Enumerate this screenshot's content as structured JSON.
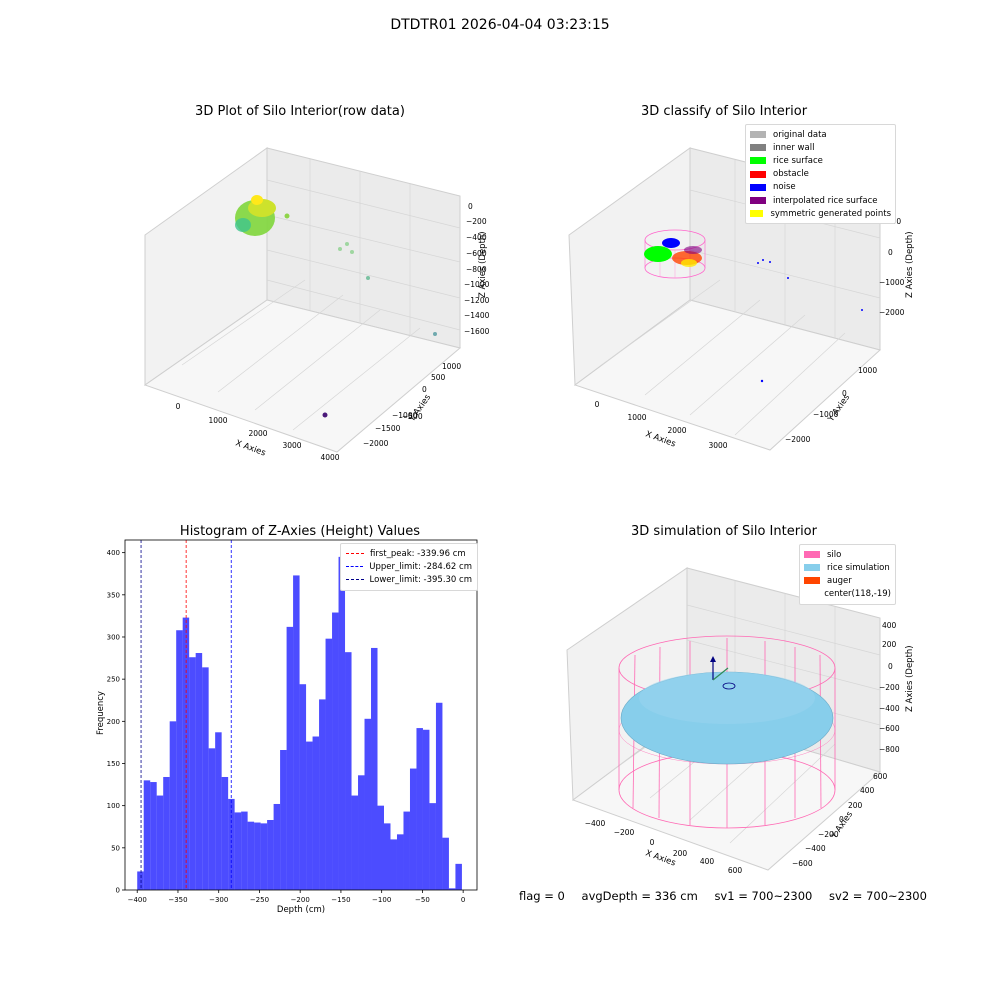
{
  "header": {
    "title": "DTDTR01 2026-04-04 03:23:15"
  },
  "footer": {
    "flag": "flag = 0",
    "avg_depth": "avgDepth = 336 cm",
    "sv1": "sv1 = 700~2300",
    "sv2": "sv2 = 700~2300"
  },
  "chart_data": [
    {
      "type": "scatter",
      "title": "3D Plot of Silo Interior(row data)",
      "xlabel": "X Axies",
      "ylabel": "Y Axies",
      "zlabel": "Z Axies (Depth)",
      "x_ticks": [
        "0",
        "1000",
        "2000",
        "3000",
        "4000"
      ],
      "y_ticks": [
        "1000",
        "500",
        "0",
        "−500",
        "−1000",
        "−1500",
        "−2000"
      ],
      "z_ticks": [
        "0",
        "−200",
        "−400",
        "−600",
        "−800",
        "−1000",
        "−1200",
        "−1400",
        "−1600"
      ],
      "grid": true
    },
    {
      "type": "scatter",
      "title": "3D classify of Silo Interior",
      "xlabel": "X Axies",
      "ylabel": "Y Axies",
      "zlabel": "Z Axies (Depth)",
      "x_ticks": [
        "0",
        "1000",
        "2000",
        "3000"
      ],
      "y_ticks": [
        "1000",
        "0",
        "−1000",
        "−2000"
      ],
      "z_ticks": [
        "1000",
        "0",
        "−1000",
        "−2000"
      ],
      "legend": {
        "placement": "top-right",
        "items": [
          {
            "label": "original data",
            "color": "#b3b3b3"
          },
          {
            "label": "inner wall",
            "color": "#808080"
          },
          {
            "label": "rice surface",
            "color": "#00ff00"
          },
          {
            "label": "obstacle",
            "color": "#ff0000"
          },
          {
            "label": "noise",
            "color": "#0000ff"
          },
          {
            "label": "interpolated rice surface",
            "color": "#800080"
          },
          {
            "label": "symmetric generated points",
            "color": "#ffff00"
          }
        ]
      },
      "grid": true
    },
    {
      "type": "bar",
      "title": "Histogram of Z-Axies (Height) Values",
      "xlabel": "Depth (cm)",
      "ylabel": "Frequency",
      "bar_color": "#0000ff",
      "bin_start": -400,
      "bin_width": 7.97,
      "values": [
        22,
        130,
        128,
        112,
        134,
        200,
        308,
        323,
        276,
        281,
        264,
        168,
        187,
        134,
        108,
        92,
        93,
        81,
        80,
        79,
        83,
        102,
        166,
        312,
        373,
        244,
        176,
        182,
        226,
        298,
        329,
        395,
        282,
        112,
        136,
        203,
        287,
        100,
        79,
        60,
        66,
        93,
        144,
        192,
        190,
        103,
        222,
        62,
        2,
        31
      ],
      "xlim": [
        -415,
        17
      ],
      "ylim": [
        0,
        415
      ],
      "x_ticks": [
        -400,
        -350,
        -300,
        -250,
        -200,
        -150,
        -100,
        -50,
        0
      ],
      "x_tick_labels": [
        "−400",
        "−350",
        "−300",
        "−250",
        "−200",
        "−150",
        "−100",
        "−50",
        "0"
      ],
      "y_ticks": [
        0,
        50,
        100,
        150,
        200,
        250,
        300,
        350,
        400
      ],
      "vlines": [
        {
          "label": "first_peak: -339.96 cm",
          "x": -339.96,
          "color": "#ff0000"
        },
        {
          "label": "Upper_limit: -284.62 cm",
          "x": -284.62,
          "color": "#0000ff"
        },
        {
          "label": "Lower_limit: -395.30 cm",
          "x": -395.3,
          "color": "#00008b"
        }
      ],
      "legend": {
        "placement": "top-right"
      }
    },
    {
      "type": "surface",
      "title": "3D simulation of Silo Interior",
      "xlabel": "X Axies",
      "ylabel": "Y Axies",
      "zlabel": "Z Axies (Depth)",
      "x_ticks": [
        "−400",
        "−200",
        "0",
        "200",
        "400",
        "600"
      ],
      "y_ticks": [
        "600",
        "400",
        "200",
        "0",
        "−200",
        "−400",
        "−600"
      ],
      "z_ticks": [
        "400",
        "200",
        "0",
        "−200",
        "−400",
        "−600",
        "−800"
      ],
      "legend": {
        "placement": "top-right",
        "items": [
          {
            "label": "silo",
            "color": "#ff69b4"
          },
          {
            "label": "rice simulation",
            "color": "#87ceeb"
          },
          {
            "label": "auger",
            "color": "#ff4500"
          },
          {
            "label": "center(118,-19)",
            "color": ""
          }
        ]
      },
      "grid": true
    }
  ]
}
